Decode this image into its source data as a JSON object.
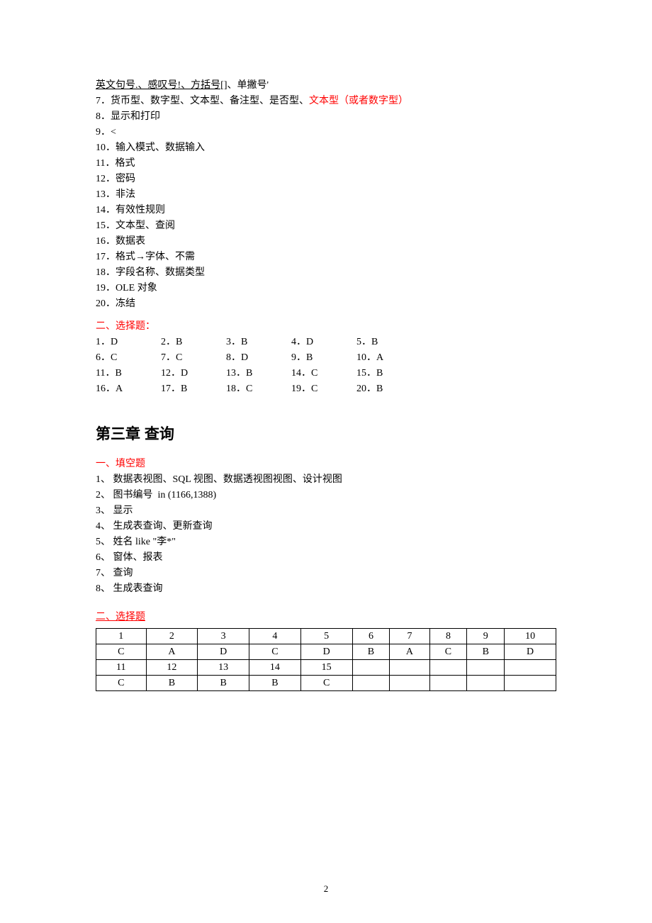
{
  "top_lines": [
    {
      "parts": [
        {
          "text": "英文句号.、感叹号!、方括号[]",
          "underline": true
        },
        {
          "text": "、单撇号'"
        }
      ]
    },
    {
      "parts": [
        {
          "text": "7．货币型、数字型、文本型、备注型、是否型、"
        },
        {
          "text": "文本型（或者数字型）",
          "red": true
        }
      ]
    },
    {
      "parts": [
        {
          "text": "8．显示和打印"
        }
      ]
    },
    {
      "parts": [
        {
          "text": "9．<"
        }
      ]
    },
    {
      "parts": [
        {
          "text": "10．输入模式、数据输入"
        }
      ]
    },
    {
      "parts": [
        {
          "text": "11．格式"
        }
      ]
    },
    {
      "parts": [
        {
          "text": "12．密码"
        }
      ]
    },
    {
      "parts": [
        {
          "text": "13．非法"
        }
      ]
    },
    {
      "parts": [
        {
          "text": "14．有效性规则"
        }
      ]
    },
    {
      "parts": [
        {
          "text": "15．文本型、查阅"
        }
      ]
    },
    {
      "parts": [
        {
          "text": "16．数据表"
        }
      ]
    },
    {
      "parts": [
        {
          "text": "17．格式→字体、不需"
        }
      ]
    },
    {
      "parts": [
        {
          "text": "18．字段名称、数据类型"
        }
      ]
    },
    {
      "parts": [
        {
          "text": "19．OLE 对象"
        }
      ]
    },
    {
      "parts": [
        {
          "text": "20．冻结"
        }
      ]
    }
  ],
  "section2_title": "二、选择题：",
  "mc_rows": [
    [
      "1．D",
      "2．B",
      "3．B",
      "4．D",
      "5．B"
    ],
    [
      "6．C",
      "7．C",
      "8．D",
      "9．B",
      "10．A"
    ],
    [
      "11．B",
      "12．D",
      "13．B",
      "14．C",
      "15．B"
    ],
    [
      "16．A",
      "17．B",
      "18．C",
      "19．C",
      "20．B"
    ]
  ],
  "chapter_title": "第三章  查询",
  "fill_title": "一、填空题",
  "fill_lines": [
    "1、 数据表视图、SQL 视图、数据透视图视图、设计视图",
    "2、 图书编号  in (1166,1388)",
    "3、 显示",
    "4、 生成表查询、更新查询",
    "5、 姓名 like \"李*\"",
    "6、 窗体、报表",
    "7、 查询",
    "8、 生成表查询"
  ],
  "choice_title": "二、选择题",
  "table_rows": [
    [
      "1",
      "2",
      "3",
      "4",
      "5",
      "6",
      "7",
      "8",
      "9",
      "10"
    ],
    [
      "C",
      "A",
      "D",
      "C",
      "D",
      "B",
      "A",
      "C",
      "B",
      "D"
    ],
    [
      "11",
      "12",
      "13",
      "14",
      "15",
      "",
      "",
      "",
      "",
      ""
    ],
    [
      "C",
      "B",
      "B",
      "B",
      "C",
      "",
      "",
      "",
      "",
      ""
    ]
  ],
  "page_number": "2"
}
